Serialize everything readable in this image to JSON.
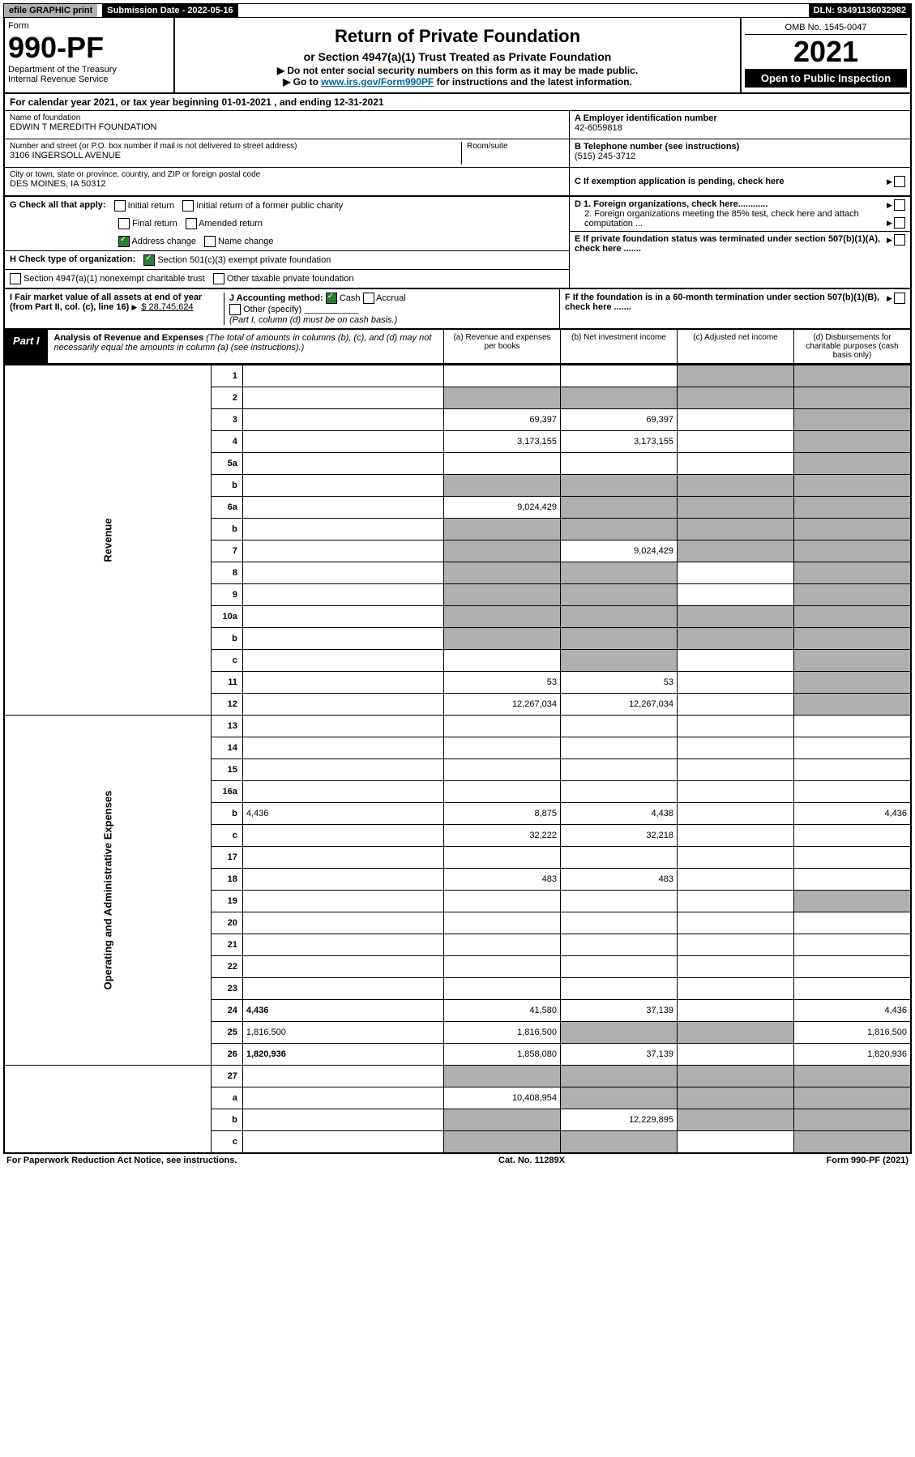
{
  "topbar": {
    "efile": "efile GRAPHIC print",
    "submission": "Submission Date - 2022-05-16",
    "dln": "DLN: 93491136032982"
  },
  "header": {
    "form_label": "Form",
    "form_no": "990-PF",
    "dept": "Department of the Treasury",
    "irs": "Internal Revenue Service",
    "title": "Return of Private Foundation",
    "subtitle": "or Section 4947(a)(1) Trust Treated as Private Foundation",
    "note1": "▶ Do not enter social security numbers on this form as it may be made public.",
    "note2_pre": "▶ Go to ",
    "note2_link": "www.irs.gov/Form990PF",
    "note2_post": " for instructions and the latest information.",
    "omb": "OMB No. 1545-0047",
    "year": "2021",
    "open": "Open to Public Inspection"
  },
  "calendar": "For calendar year 2021, or tax year beginning 01-01-2021          , and ending 12-31-2021",
  "identity": {
    "name_label": "Name of foundation",
    "name": "EDWIN T MEREDITH FOUNDATION",
    "addr_label": "Number and street (or P.O. box number if mail is not delivered to street address)",
    "addr": "3106 INGERSOLL AVENUE",
    "room_label": "Room/suite",
    "city_label": "City or town, state or province, country, and ZIP or foreign postal code",
    "city": "DES MOINES, IA  50312",
    "ein_label": "A Employer identification number",
    "ein": "42-6059818",
    "phone_label": "B Telephone number (see instructions)",
    "phone": "(515) 245-3712",
    "c_label": "C If exemption application is pending, check here"
  },
  "g": {
    "label": "G Check all that apply:",
    "initial": "Initial return",
    "initial_former": "Initial return of a former public charity",
    "final": "Final return",
    "amended": "Amended return",
    "address_change": "Address change",
    "name_change": "Name change"
  },
  "d": {
    "d1": "D 1. Foreign organizations, check here............",
    "d2": "2. Foreign organizations meeting the 85% test, check here and attach computation ..."
  },
  "e": "E If private foundation status was terminated under section 507(b)(1)(A), check here .......",
  "h": {
    "label": "H Check type of organization:",
    "opt1": "Section 501(c)(3) exempt private foundation",
    "opt2": "Section 4947(a)(1) nonexempt charitable trust",
    "opt3": "Other taxable private foundation"
  },
  "i": {
    "label": "I Fair market value of all assets at end of year (from Part II, col. (c), line 16)",
    "value": "$ 28,745,624"
  },
  "j": {
    "label": "J Accounting method:",
    "cash": "Cash",
    "accrual": "Accrual",
    "other": "Other (specify)",
    "note": "(Part I, column (d) must be on cash basis.)"
  },
  "f": "F If the foundation is in a 60-month termination under section 507(b)(1)(B), check here .......",
  "part1": {
    "tag": "Part I",
    "title": "Analysis of Revenue and Expenses",
    "title_note": " (The total of amounts in columns (b), (c), and (d) may not necessarily equal the amounts in column (a) (see instructions).)",
    "col_a": "(a) Revenue and expenses per books",
    "col_b": "(b) Net investment income",
    "col_c": "(c) Adjusted net income",
    "col_d": "(d) Disbursements for charitable purposes (cash basis only)"
  },
  "sections": {
    "revenue": "Revenue",
    "opex": "Operating and Administrative Expenses"
  },
  "rows": [
    {
      "n": "1",
      "d": "",
      "a": "",
      "b": "",
      "c": "",
      "shade": [
        "c",
        "d"
      ]
    },
    {
      "n": "2",
      "d": "",
      "a": "",
      "b": "",
      "c": "",
      "shade": [
        "a",
        "b",
        "c",
        "d"
      ],
      "bold_not": true
    },
    {
      "n": "3",
      "d": "",
      "a": "69,397",
      "b": "69,397",
      "c": "",
      "shade": [
        "d"
      ]
    },
    {
      "n": "4",
      "d": "",
      "a": "3,173,155",
      "b": "3,173,155",
      "c": "",
      "shade": [
        "d"
      ]
    },
    {
      "n": "5a",
      "d": "",
      "a": "",
      "b": "",
      "c": "",
      "shade": [
        "d"
      ]
    },
    {
      "n": "b",
      "d": "",
      "a": "",
      "b": "",
      "c": "",
      "shade": [
        "a",
        "b",
        "c",
        "d"
      ]
    },
    {
      "n": "6a",
      "d": "",
      "a": "9,024,429",
      "b": "",
      "c": "",
      "shade": [
        "b",
        "c",
        "d"
      ]
    },
    {
      "n": "b",
      "d": "",
      "a": "",
      "b": "",
      "c": "",
      "shade": [
        "a",
        "b",
        "c",
        "d"
      ]
    },
    {
      "n": "7",
      "d": "",
      "a": "",
      "b": "9,024,429",
      "c": "",
      "shade": [
        "a",
        "c",
        "d"
      ]
    },
    {
      "n": "8",
      "d": "",
      "a": "",
      "b": "",
      "c": "",
      "shade": [
        "a",
        "b",
        "d"
      ]
    },
    {
      "n": "9",
      "d": "",
      "a": "",
      "b": "",
      "c": "",
      "shade": [
        "a",
        "b",
        "d"
      ]
    },
    {
      "n": "10a",
      "d": "",
      "a": "",
      "b": "",
      "c": "",
      "shade": [
        "a",
        "b",
        "c",
        "d"
      ]
    },
    {
      "n": "b",
      "d": "",
      "a": "",
      "b": "",
      "c": "",
      "shade": [
        "a",
        "b",
        "c",
        "d"
      ]
    },
    {
      "n": "c",
      "d": "",
      "a": "",
      "b": "",
      "c": "",
      "shade": [
        "b",
        "d"
      ]
    },
    {
      "n": "11",
      "d": "",
      "a": "53",
      "b": "53",
      "c": "",
      "shade": [
        "d"
      ]
    },
    {
      "n": "12",
      "d": "",
      "a": "12,267,034",
      "b": "12,267,034",
      "c": "",
      "shade": [
        "d"
      ],
      "bold": true
    }
  ],
  "rows2": [
    {
      "n": "13",
      "d": "",
      "a": "",
      "b": "",
      "c": ""
    },
    {
      "n": "14",
      "d": "",
      "a": "",
      "b": "",
      "c": ""
    },
    {
      "n": "15",
      "d": "",
      "a": "",
      "b": "",
      "c": ""
    },
    {
      "n": "16a",
      "d": "",
      "a": "",
      "b": "",
      "c": ""
    },
    {
      "n": "b",
      "d": "4,436",
      "a": "8,875",
      "b": "4,438",
      "c": ""
    },
    {
      "n": "c",
      "d": "",
      "a": "32,222",
      "b": "32,218",
      "c": ""
    },
    {
      "n": "17",
      "d": "",
      "a": "",
      "b": "",
      "c": ""
    },
    {
      "n": "18",
      "d": "",
      "a": "483",
      "b": "483",
      "c": ""
    },
    {
      "n": "19",
      "d": "",
      "a": "",
      "b": "",
      "c": "",
      "shade": [
        "d"
      ]
    },
    {
      "n": "20",
      "d": "",
      "a": "",
      "b": "",
      "c": ""
    },
    {
      "n": "21",
      "d": "",
      "a": "",
      "b": "",
      "c": ""
    },
    {
      "n": "22",
      "d": "",
      "a": "",
      "b": "",
      "c": ""
    },
    {
      "n": "23",
      "d": "",
      "a": "",
      "b": "",
      "c": ""
    },
    {
      "n": "24",
      "d": "4,436",
      "a": "41,580",
      "b": "37,139",
      "c": "",
      "bold": true
    },
    {
      "n": "25",
      "d": "1,816,500",
      "a": "1,816,500",
      "b": "",
      "c": "",
      "shade": [
        "b",
        "c"
      ]
    },
    {
      "n": "26",
      "d": "1,820,936",
      "a": "1,858,080",
      "b": "37,139",
      "c": "",
      "bold": true
    }
  ],
  "rows3": [
    {
      "n": "27",
      "d": "",
      "a": "",
      "b": "",
      "c": "",
      "shade": [
        "a",
        "b",
        "c",
        "d"
      ]
    },
    {
      "n": "a",
      "d": "",
      "a": "10,408,954",
      "b": "",
      "c": "",
      "shade": [
        "b",
        "c",
        "d"
      ],
      "bold": true
    },
    {
      "n": "b",
      "d": "",
      "a": "",
      "b": "12,229,895",
      "c": "",
      "shade": [
        "a",
        "c",
        "d"
      ],
      "bold": true
    },
    {
      "n": "c",
      "d": "",
      "a": "",
      "b": "",
      "c": "",
      "shade": [
        "a",
        "b",
        "d"
      ],
      "bold": true
    }
  ],
  "footer": {
    "left": "For Paperwork Reduction Act Notice, see instructions.",
    "center": "Cat. No. 11289X",
    "right": "Form 990-PF (2021)"
  },
  "colors": {
    "shade": "#b0b0b0",
    "black": "#000000",
    "link": "#0066aa",
    "green": "#2e7d32"
  }
}
